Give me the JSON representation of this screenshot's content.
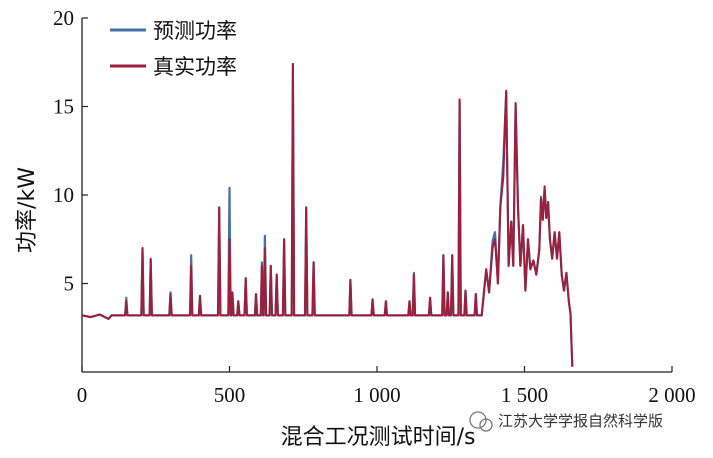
{
  "chart_data": {
    "type": "line",
    "title": "",
    "xlabel": "混合工况测试时间/s",
    "ylabel": "功率/kW",
    "xlim": [
      0,
      2000
    ],
    "ylim": [
      0,
      20
    ],
    "x_tick_labels": [
      "0",
      "500",
      "1 000",
      "1 500",
      "2 000"
    ],
    "y_tick_labels": [
      "5",
      "10",
      "15",
      "20"
    ],
    "grid": false,
    "legend_position": "top-left",
    "series": [
      {
        "name": "预测功率",
        "color": "#4a6fa5",
        "spikes": [
          [
            150,
            4.2
          ],
          [
            205,
            7.0
          ],
          [
            233,
            6.3
          ],
          [
            300,
            4.5
          ],
          [
            370,
            6.6
          ],
          [
            400,
            4.3
          ],
          [
            465,
            9.3
          ],
          [
            500,
            10.4
          ],
          [
            510,
            4.5
          ],
          [
            530,
            4.0
          ],
          [
            555,
            5.3
          ],
          [
            590,
            4.4
          ],
          [
            610,
            6.2
          ],
          [
            620,
            7.7
          ],
          [
            640,
            6.0
          ],
          [
            660,
            5.5
          ],
          [
            685,
            7.5
          ],
          [
            715,
            17.4
          ],
          [
            760,
            9.3
          ],
          [
            785,
            6.2
          ],
          [
            910,
            5.2
          ],
          [
            985,
            4.1
          ],
          [
            1030,
            4.0
          ],
          [
            1110,
            4.0
          ],
          [
            1125,
            5.6
          ],
          [
            1180,
            4.2
          ],
          [
            1225,
            6.6
          ],
          [
            1240,
            4.5
          ],
          [
            1255,
            6.6
          ],
          [
            1280,
            15.3
          ],
          [
            1300,
            4.6
          ],
          [
            1335,
            4.4
          ]
        ],
        "burst": [
          [
            1355,
            3.2
          ],
          [
            1370,
            5.8
          ],
          [
            1380,
            4.5
          ],
          [
            1392,
            7.4
          ],
          [
            1400,
            7.9
          ],
          [
            1410,
            5.0
          ],
          [
            1418,
            9.3
          ],
          [
            1428,
            11.9
          ],
          [
            1438,
            15.8
          ],
          [
            1446,
            6.0
          ],
          [
            1455,
            8.5
          ],
          [
            1462,
            6.0
          ],
          [
            1470,
            15.1
          ],
          [
            1478,
            9.3
          ],
          [
            1486,
            6.0
          ],
          [
            1495,
            8.3
          ],
          [
            1503,
            4.6
          ],
          [
            1512,
            7.5
          ],
          [
            1520,
            5.8
          ],
          [
            1530,
            6.3
          ],
          [
            1540,
            5.5
          ],
          [
            1550,
            6.9
          ],
          [
            1556,
            9.9
          ],
          [
            1562,
            8.6
          ],
          [
            1568,
            10.3
          ],
          [
            1574,
            8.7
          ],
          [
            1580,
            9.6
          ],
          [
            1586,
            7.5
          ],
          [
            1594,
            6.4
          ],
          [
            1602,
            7.9
          ],
          [
            1610,
            6.4
          ],
          [
            1618,
            7.9
          ],
          [
            1626,
            5.5
          ],
          [
            1634,
            4.6
          ],
          [
            1642,
            5.6
          ],
          [
            1650,
            4.0
          ],
          [
            1656,
            3.3
          ],
          [
            1662,
            0.3
          ]
        ]
      },
      {
        "name": "真实功率",
        "color": "#9c1f3c",
        "spikes": [
          [
            150,
            4.0
          ],
          [
            205,
            7.0
          ],
          [
            233,
            6.4
          ],
          [
            300,
            4.4
          ],
          [
            370,
            6.0
          ],
          [
            400,
            4.3
          ],
          [
            465,
            9.3
          ],
          [
            500,
            7.5
          ],
          [
            510,
            4.5
          ],
          [
            530,
            4.0
          ],
          [
            555,
            5.3
          ],
          [
            590,
            4.4
          ],
          [
            610,
            6.0
          ],
          [
            620,
            7.0
          ],
          [
            640,
            6.0
          ],
          [
            660,
            5.5
          ],
          [
            685,
            7.5
          ],
          [
            715,
            17.4
          ],
          [
            760,
            9.3
          ],
          [
            785,
            6.2
          ],
          [
            910,
            5.2
          ],
          [
            985,
            4.1
          ],
          [
            1030,
            4.0
          ],
          [
            1110,
            4.0
          ],
          [
            1125,
            5.5
          ],
          [
            1180,
            4.2
          ],
          [
            1225,
            6.6
          ],
          [
            1240,
            4.5
          ],
          [
            1255,
            6.6
          ],
          [
            1280,
            15.4
          ],
          [
            1300,
            4.6
          ],
          [
            1335,
            4.4
          ]
        ],
        "burst": [
          [
            1355,
            3.2
          ],
          [
            1370,
            5.8
          ],
          [
            1380,
            4.5
          ],
          [
            1392,
            7.0
          ],
          [
            1400,
            7.5
          ],
          [
            1410,
            5.0
          ],
          [
            1418,
            9.3
          ],
          [
            1428,
            11.0
          ],
          [
            1438,
            15.9
          ],
          [
            1446,
            6.0
          ],
          [
            1455,
            8.5
          ],
          [
            1462,
            6.0
          ],
          [
            1470,
            15.2
          ],
          [
            1478,
            9.3
          ],
          [
            1486,
            6.0
          ],
          [
            1495,
            8.3
          ],
          [
            1503,
            4.6
          ],
          [
            1512,
            7.5
          ],
          [
            1520,
            5.8
          ],
          [
            1530,
            6.3
          ],
          [
            1540,
            5.5
          ],
          [
            1550,
            6.9
          ],
          [
            1556,
            9.8
          ],
          [
            1562,
            8.6
          ],
          [
            1568,
            10.5
          ],
          [
            1574,
            8.7
          ],
          [
            1580,
            9.6
          ],
          [
            1586,
            7.5
          ],
          [
            1594,
            6.4
          ],
          [
            1602,
            7.9
          ],
          [
            1610,
            6.4
          ],
          [
            1618,
            7.9
          ],
          [
            1626,
            5.5
          ],
          [
            1634,
            4.6
          ],
          [
            1642,
            5.6
          ],
          [
            1650,
            4.0
          ],
          [
            1656,
            3.3
          ],
          [
            1662,
            0.3
          ]
        ]
      }
    ],
    "baseline": 3.2
  },
  "watermark": {
    "text": "江苏大学学报自然科学版",
    "icon": "wechat-icon"
  }
}
